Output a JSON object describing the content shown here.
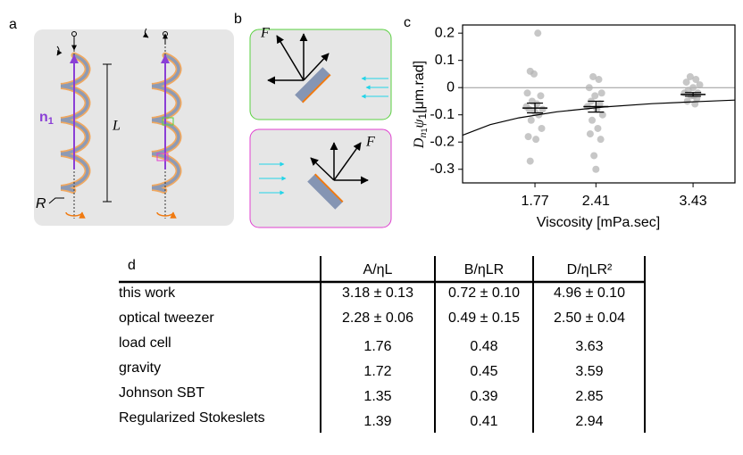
{
  "panel_labels": [
    "a",
    "b",
    "c",
    "d"
  ],
  "panel_a": {
    "n_label": [
      "n",
      "1"
    ],
    "length_label": "L",
    "radius_label": "R"
  },
  "panel_b": {
    "force_labels": [
      "F",
      "F"
    ]
  },
  "chart_data": {
    "type": "scatter",
    "ylabel_parts": [
      "D",
      "n",
      "1",
      "ψ",
      "1",
      "[μm.rad]"
    ],
    "xlabel": "Viscosity [mPa.sec]",
    "xlim": [
      1.01,
      3.87
    ],
    "ylim": [
      -0.35,
      0.23
    ],
    "xticks": [
      1.77,
      2.41,
      3.43
    ],
    "yticks": [
      0.2,
      0.1,
      0,
      -0.1,
      -0.2,
      -0.3
    ],
    "zero_line": true,
    "points": {
      "color": "#b4b4b4",
      "x": [
        1.8,
        1.72,
        1.76,
        1.69,
        1.83,
        1.74,
        1.79,
        1.68,
        1.85,
        1.71,
        1.77,
        1.81,
        1.73,
        1.84,
        1.7,
        1.78,
        1.72,
        2.38,
        2.44,
        2.34,
        2.47,
        2.4,
        2.36,
        2.45,
        2.32,
        2.42,
        2.48,
        2.37,
        2.43,
        2.35,
        2.46,
        2.39,
        2.41,
        3.4,
        3.46,
        3.36,
        3.5,
        3.43,
        3.38,
        3.48,
        3.34,
        3.44,
        3.41,
        3.47,
        3.37,
        3.45
      ],
      "values": [
        0.2,
        0.06,
        0.05,
        -0.02,
        -0.03,
        -0.05,
        -0.06,
        -0.07,
        -0.08,
        -0.08,
        -0.09,
        -0.1,
        -0.12,
        -0.15,
        -0.18,
        -0.19,
        -0.27,
        0.04,
        0.03,
        0.0,
        -0.02,
        -0.03,
        -0.05,
        -0.06,
        -0.07,
        -0.08,
        -0.1,
        -0.12,
        -0.15,
        -0.17,
        -0.19,
        -0.25,
        -0.3,
        0.04,
        0.03,
        0.02,
        0.01,
        0.0,
        -0.01,
        -0.02,
        -0.02,
        -0.03,
        -0.03,
        -0.04,
        -0.05,
        -0.06
      ]
    },
    "means": {
      "color": "#000000",
      "x": [
        1.77,
        2.41,
        3.43
      ],
      "values": [
        -0.075,
        -0.07,
        -0.025
      ],
      "errors": [
        0.018,
        0.02,
        0.007
      ]
    },
    "fit": {
      "color": "#000000",
      "x": [
        1.01,
        1.3,
        1.6,
        2,
        2.5,
        3,
        3.5,
        3.87
      ],
      "values": [
        -0.175,
        -0.136,
        -0.111,
        -0.089,
        -0.071,
        -0.059,
        -0.051,
        -0.046
      ]
    }
  },
  "table": {
    "header": [
      "A/ηL",
      "B/ηLR",
      "D/ηLR²"
    ],
    "rows": [
      [
        "this work",
        "3.18 ± 0.13",
        "0.72 ± 0.10",
        "4.96 ± 0.10"
      ],
      [
        "optical tweezer",
        "2.28 ± 0.06",
        "0.49 ± 0.15",
        "2.50 ± 0.04"
      ],
      [
        "load cell",
        "1.76",
        "0.48",
        "3.63"
      ],
      [
        "gravity",
        "1.72",
        "0.45",
        "3.59"
      ],
      [
        "Johnson SBT",
        "1.35",
        "0.39",
        "2.85"
      ],
      [
        "Regularized Stokeslets",
        "1.39",
        "0.41",
        "2.94"
      ]
    ]
  }
}
